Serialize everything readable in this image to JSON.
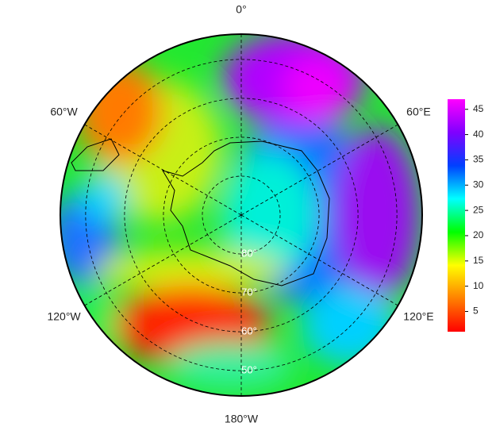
{
  "chart_data": {
    "type": "polar-map",
    "lon_labels": [
      {
        "value": 0,
        "label": "0°"
      },
      {
        "value": 60,
        "label": "60°E"
      },
      {
        "value": 120,
        "label": "120°E"
      },
      {
        "value": 180,
        "label": "180°W"
      },
      {
        "value": -120,
        "label": "120°W"
      },
      {
        "value": -60,
        "label": "60°W"
      }
    ],
    "lat_labels": [
      {
        "value": 80,
        "label": "80°"
      },
      {
        "value": 70,
        "label": "70°"
      },
      {
        "value": 60,
        "label": "60°"
      },
      {
        "value": 50,
        "label": "50°"
      }
    ],
    "rlim": [
      90,
      43.5
    ],
    "colorbar": {
      "lim": [
        1,
        47
      ],
      "ticks": [
        5,
        10,
        15,
        20,
        25,
        30,
        35,
        40,
        45
      ],
      "colors": [
        "#ff0000",
        "#ff8000",
        "#ffff00",
        "#00ff00",
        "#00ffff",
        "#0040ff",
        "#8000ff",
        "#ff00ff"
      ]
    }
  }
}
